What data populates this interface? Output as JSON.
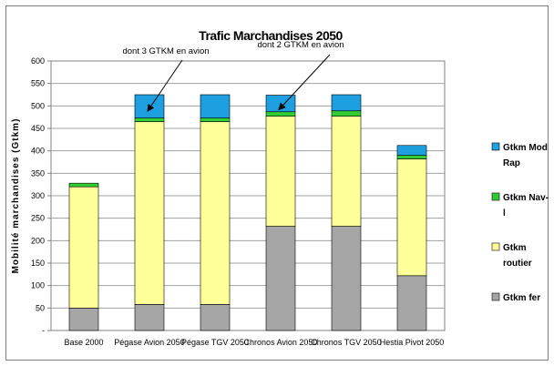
{
  "chart_data": {
    "type": "bar",
    "stacked": true,
    "title": "Trafic Marchandises 2050",
    "ylabel": "Mobilité marchandises (Gtkm)",
    "xlabel": "",
    "ylim": [
      0,
      600
    ],
    "yticks": [
      "-",
      "50",
      "100",
      "150",
      "200",
      "250",
      "300",
      "350",
      "400",
      "450",
      "500",
      "550",
      "600"
    ],
    "grid": true,
    "legend_position": "right",
    "categories": [
      "Base 2000",
      "Pégase Avion 2050",
      "Pégase TGV 2050",
      "Chronos Avion 2050",
      "Chronos TGV 2050",
      "Hestia Pivot 2050"
    ],
    "series": [
      {
        "name": "Gtkm fer",
        "color": "#a6a6a6",
        "values": [
          50,
          58,
          58,
          232,
          232,
          122
        ]
      },
      {
        "name": "Gtkm routier",
        "color": "#ffff99",
        "values": [
          270,
          407,
          407,
          245,
          245,
          260
        ]
      },
      {
        "name": "Gtkm Nav-l",
        "color": "#33cc33",
        "values": [
          8,
          8,
          8,
          10,
          12,
          8
        ]
      },
      {
        "name": "Gtkm Mod Rap",
        "color": "#1e9fe0",
        "values": [
          0,
          52,
          52,
          37,
          36,
          22
        ]
      }
    ],
    "annotations": [
      {
        "text": "dont 3 GTKM en avion",
        "category_index": 1
      },
      {
        "text": "dont 2 GTKM en avion",
        "category_index": 3
      }
    ]
  },
  "legend": {
    "entries": [
      {
        "lines": [
          "Gtkm Mod",
          "Rap"
        ],
        "color": "#1e9fe0"
      },
      {
        "lines": [
          "Gtkm Nav-",
          "l"
        ],
        "color": "#33cc33"
      },
      {
        "lines": [
          "Gtkm",
          "routier"
        ],
        "color": "#ffff99"
      },
      {
        "lines": [
          "Gtkm fer"
        ],
        "color": "#a6a6a6"
      }
    ]
  }
}
